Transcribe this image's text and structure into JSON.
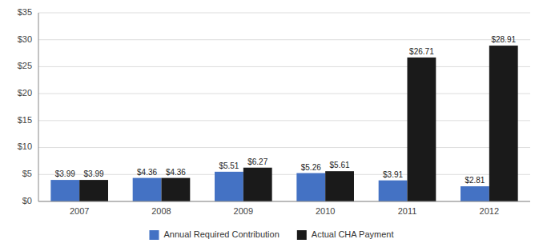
{
  "chart_data": {
    "type": "bar",
    "categories": [
      "2007",
      "2008",
      "2009",
      "2010",
      "2011",
      "2012"
    ],
    "series": [
      {
        "name": "Annual Required Contribution",
        "color": "#4472C4",
        "values": [
          3.99,
          4.36,
          5.51,
          5.26,
          3.91,
          2.81
        ],
        "value_labels": [
          "$3.99",
          "$4.36",
          "$5.51",
          "$5.26",
          "$3.91",
          "$2.81"
        ]
      },
      {
        "name": "Actual CHA Payment",
        "color": "#1A1A1A",
        "values": [
          3.99,
          4.36,
          6.27,
          5.61,
          26.71,
          28.91
        ],
        "value_labels": [
          "$3.99",
          "$4.36",
          "$6.27",
          "$5.61",
          "$26.71",
          "$28.91"
        ]
      }
    ],
    "ylim": [
      0,
      35
    ],
    "yticks": [
      {
        "value": 0,
        "label": "$0"
      },
      {
        "value": 5,
        "label": "$5"
      },
      {
        "value": 10,
        "label": "$10"
      },
      {
        "value": 15,
        "label": "$15"
      },
      {
        "value": 20,
        "label": "$20"
      },
      {
        "value": 25,
        "label": "$25"
      },
      {
        "value": 30,
        "label": "$30"
      },
      {
        "value": 35,
        "label": "$35"
      }
    ],
    "grid": true,
    "legend": "bottom",
    "data_labels": true
  }
}
